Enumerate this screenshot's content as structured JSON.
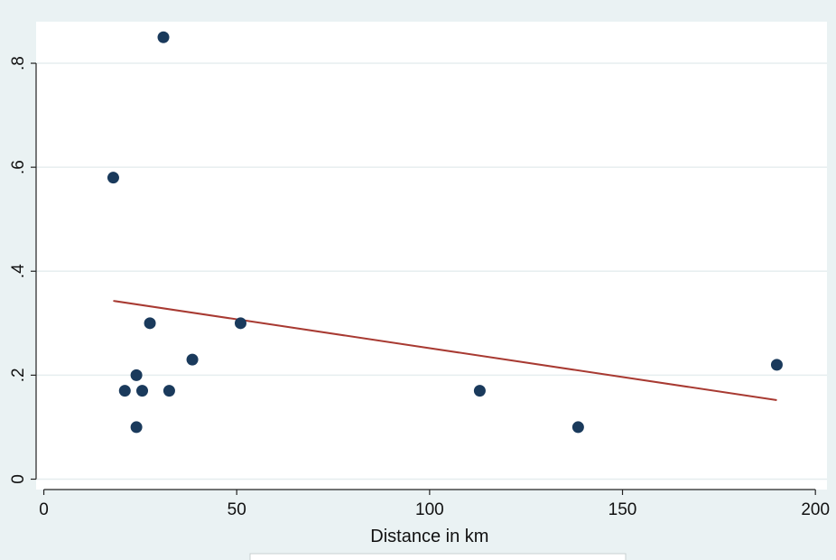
{
  "chart_data": {
    "type": "scatter",
    "title": "",
    "xlabel": "Distance in km",
    "ylabel": "",
    "xlim": [
      -2,
      203
    ],
    "ylim": [
      -0.02,
      0.88
    ],
    "x_ticks": [
      0,
      50,
      100,
      150,
      200
    ],
    "x_tick_labels": [
      "0",
      "50",
      "100",
      "150",
      "200"
    ],
    "y_ticks": [
      0,
      0.2,
      0.4,
      0.6,
      0.8
    ],
    "y_tick_labels": [
      "0",
      ".2",
      ".4",
      ".6",
      ".8"
    ],
    "grid": true,
    "series": [
      {
        "type": "scatter",
        "color": "#1a3a5c",
        "points": [
          {
            "x": 18,
            "y": 0.58
          },
          {
            "x": 21,
            "y": 0.17
          },
          {
            "x": 24,
            "y": 0.2
          },
          {
            "x": 24,
            "y": 0.1
          },
          {
            "x": 25.5,
            "y": 0.17
          },
          {
            "x": 27.5,
            "y": 0.3
          },
          {
            "x": 31,
            "y": 0.85
          },
          {
            "x": 32.5,
            "y": 0.17
          },
          {
            "x": 38.5,
            "y": 0.23
          },
          {
            "x": 51,
            "y": 0.3
          },
          {
            "x": 113,
            "y": 0.17
          },
          {
            "x": 138.5,
            "y": 0.1
          },
          {
            "x": 190,
            "y": 0.22
          }
        ]
      },
      {
        "type": "line",
        "color": "#a83a32",
        "points": [
          {
            "x": 18,
            "y": 0.343
          },
          {
            "x": 190,
            "y": 0.152
          }
        ]
      }
    ]
  }
}
